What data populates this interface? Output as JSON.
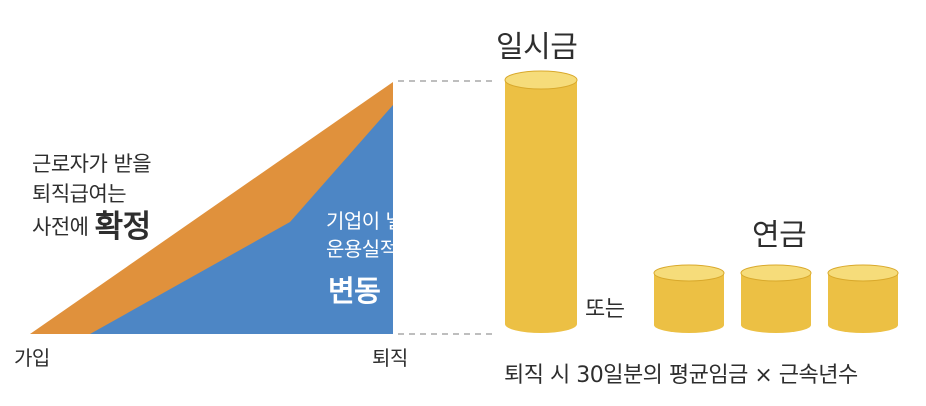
{
  "left_desc": {
    "line1": "근로자가 받을",
    "line2": "퇴직급여는",
    "line3_small": "사전에",
    "line3_big": "확정"
  },
  "mid_desc": {
    "line1": "기업이 낼 부담금은",
    "line2": "운용실적에 따라",
    "line3": "변동"
  },
  "axis": {
    "start": "가입",
    "end": "퇴직"
  },
  "lumpsum": {
    "title": "일시금"
  },
  "or_label": "또는",
  "pension": {
    "title": "연금"
  },
  "formula": "퇴직 시 30일분의 평균임금 × 근속년수",
  "colors": {
    "orange": "#e0913c",
    "blue": "#4d86c5",
    "gold": "#ecc044",
    "gold_top": "#f6dc7a",
    "gold_edge": "#d9a92c",
    "dash": "#a8a8a8"
  }
}
